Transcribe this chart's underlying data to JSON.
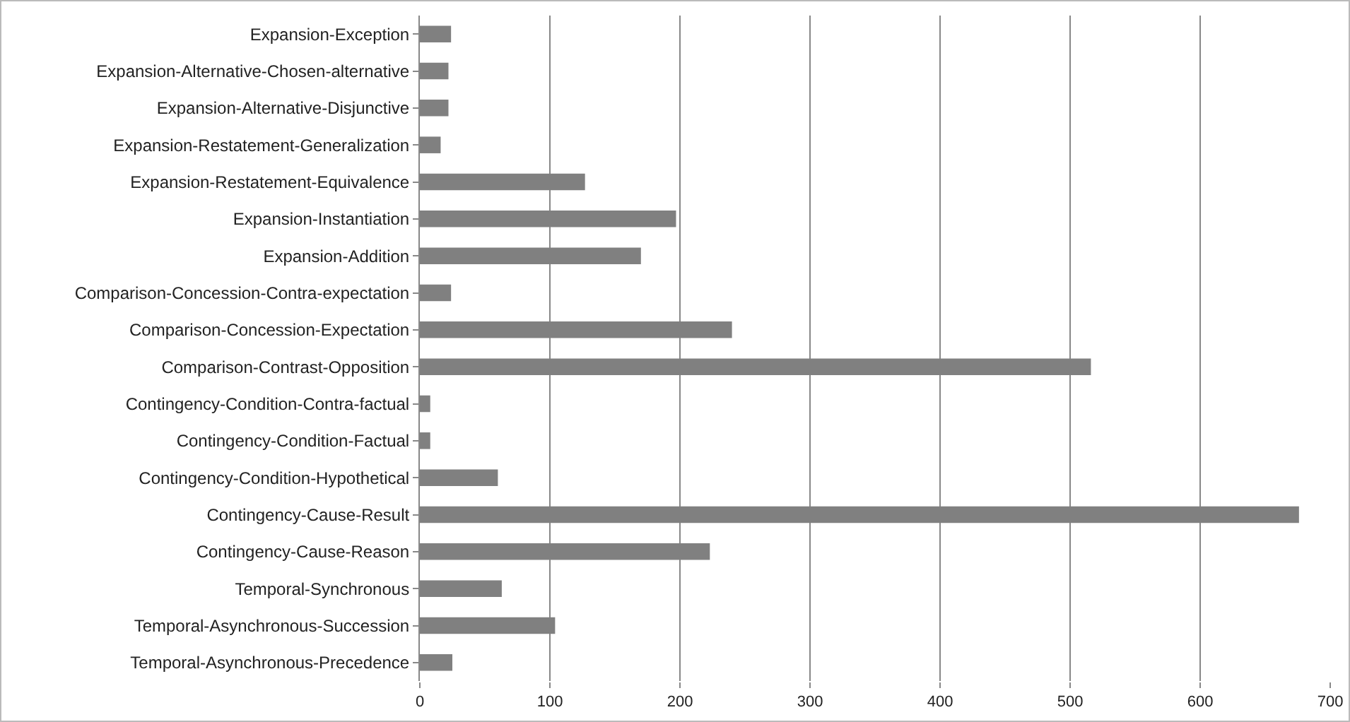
{
  "chart_data": {
    "type": "bar",
    "orientation": "horizontal",
    "categories": [
      "Expansion-Exception",
      "Expansion-Alternative-Chosen-alternative",
      "Expansion-Alternative-Disjunctive",
      "Expansion-Restatement-Generalization",
      "Expansion-Restatement-Equivalence",
      "Expansion-Instantiation",
      "Expansion-Addition",
      "Comparison-Concession-Contra-expectation",
      "Comparison-Concession-Expectation",
      "Comparison-Contrast-Opposition",
      "Contingency-Condition-Contra-factual",
      "Contingency-Condition-Factual",
      "Contingency-Condition-Hypothetical",
      "Contingency-Cause-Result",
      "Contingency-Cause-Reason",
      "Temporal-Synchronous",
      "Temporal-Asynchronous-Succession",
      "Temporal-Asynchronous-Precedence"
    ],
    "values": [
      24,
      22,
      22,
      16,
      127,
      197,
      170,
      24,
      240,
      516,
      8,
      8,
      60,
      676,
      223,
      63,
      104,
      25
    ],
    "color": "#808080",
    "xlim": [
      0,
      700
    ],
    "xticks": [
      0,
      100,
      200,
      300,
      400,
      500,
      600,
      700
    ],
    "grid": "x"
  }
}
